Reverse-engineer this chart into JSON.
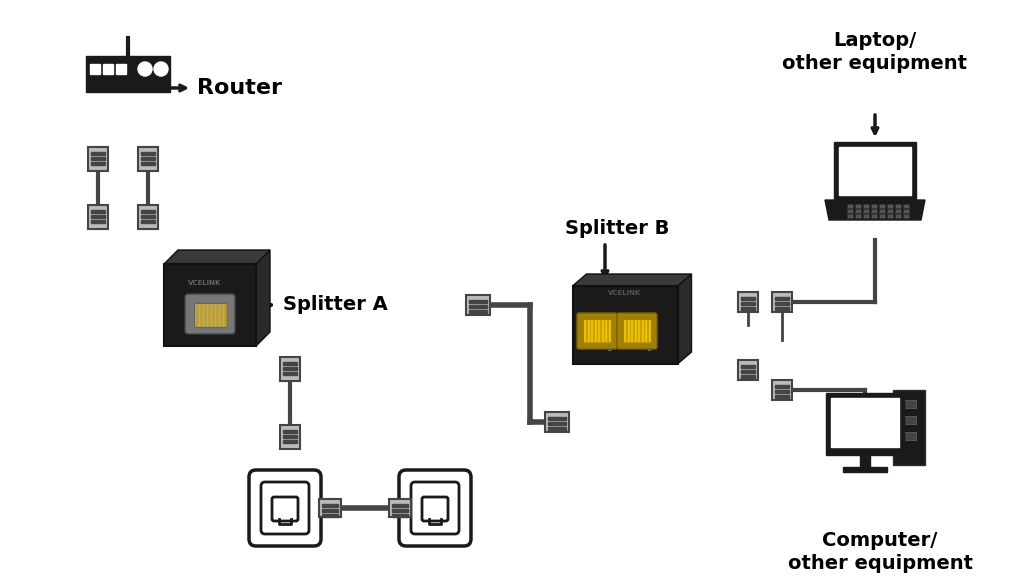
{
  "background_color": "#ffffff",
  "labels": {
    "router": "Router",
    "splitter_a": "Splitter A",
    "splitter_b": "Splitter B",
    "laptop": "Laptop/\nother equipment",
    "computer": "Computer/\nother equipment"
  },
  "text_color": "#000000",
  "device_color": "#1a1a1a",
  "connector_color": "#888888",
  "connector_dark": "#444444",
  "cable_color": "#333333"
}
